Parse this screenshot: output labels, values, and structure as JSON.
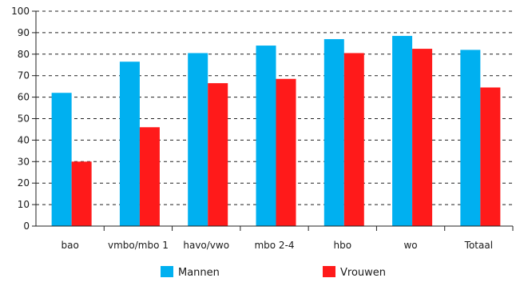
{
  "chart_data": {
    "type": "bar",
    "title": "",
    "xlabel": "",
    "ylabel": "",
    "ylim": [
      0,
      100
    ],
    "yticks": [
      0,
      10,
      20,
      30,
      40,
      50,
      60,
      70,
      80,
      90,
      100
    ],
    "grid": "horizontal-dashed",
    "legend_position": "bottom",
    "categories": [
      "bao",
      "vmbo/mbo 1",
      "havo/vwo",
      "mbo 2-4",
      "hbo",
      "wo",
      "Totaal"
    ],
    "series": [
      {
        "name": "Mannen",
        "color": "#00b0f0",
        "values": [
          62,
          76.5,
          80.5,
          84,
          87,
          88.5,
          82
        ]
      },
      {
        "name": "Vrouwen",
        "color": "#ff1a1a",
        "values": [
          30,
          46,
          66.5,
          68.5,
          80.5,
          82.5,
          64.5
        ]
      }
    ]
  }
}
